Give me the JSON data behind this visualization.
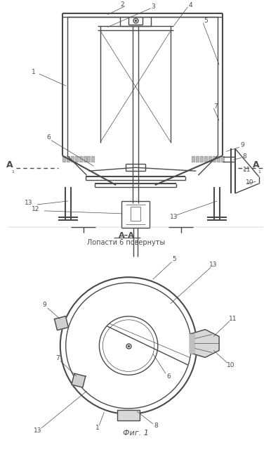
{
  "bg_color": "#ffffff",
  "line_color": "#4a4a4a",
  "thin_line": 0.5,
  "med_line": 1.0,
  "thick_line": 1.5,
  "section_label": "А–А",
  "section_sublabel": "Лопасти 6 повернуты",
  "fig_label": "Фиг. 1"
}
